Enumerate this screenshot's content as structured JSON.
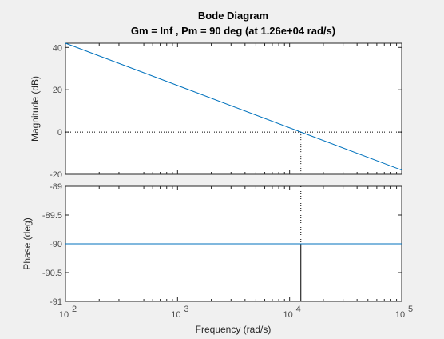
{
  "chart_data": {
    "type": "line",
    "title": "Bode Diagram",
    "subtitle": "Gm = Inf ,  Pm = 90 deg (at 1.26e+04 rad/s)",
    "xlabel": "Frequency  (rad/s)",
    "xscale": "log",
    "xlim": [
      100,
      100000
    ],
    "x_tick_labels": [
      {
        "base": "10",
        "exp": "2",
        "value": 100
      },
      {
        "base": "10",
        "exp": "3",
        "value": 1000
      },
      {
        "base": "10",
        "exp": "4",
        "value": 10000
      },
      {
        "base": "10",
        "exp": "5",
        "value": 100000
      }
    ],
    "crossover_frequency": 12600,
    "subplots": [
      {
        "ylabel": "Magnitude (dB)",
        "ylim": [
          -20,
          42
        ],
        "y_ticks": [
          40,
          20,
          0,
          -20
        ],
        "y_tick_labels": [
          "40",
          "20",
          "0",
          "-20"
        ],
        "series": [
          {
            "x": [
              100,
              100000
            ],
            "y": [
              42,
              -18
            ],
            "color": "#0072bd"
          }
        ],
        "reference_line": {
          "y": 0,
          "style": "dotted",
          "color": "#000000"
        },
        "marker_line": {
          "x": 12600,
          "y_from": 0,
          "y_to": -20,
          "style": "dotted",
          "color": "#000000"
        }
      },
      {
        "ylabel": "Phase (deg)",
        "ylim": [
          -91,
          -89
        ],
        "y_ticks": [
          -89,
          -89.5,
          -90,
          -90.5,
          -91
        ],
        "y_tick_labels": [
          "-89",
          "-89.5",
          "-90",
          "-90.5",
          "-91"
        ],
        "series": [
          {
            "x": [
              100,
              100000
            ],
            "y": [
              -90,
              -90
            ],
            "color": "#0072bd"
          }
        ],
        "marker_line_dotted": {
          "x": 12600,
          "y_from": -89,
          "y_to": -90,
          "style": "dotted",
          "color": "#000000"
        },
        "marker_line_solid": {
          "x": 12600,
          "y_from": -90,
          "y_to": -91,
          "style": "solid",
          "color": "#000000"
        }
      }
    ],
    "grid": false
  }
}
